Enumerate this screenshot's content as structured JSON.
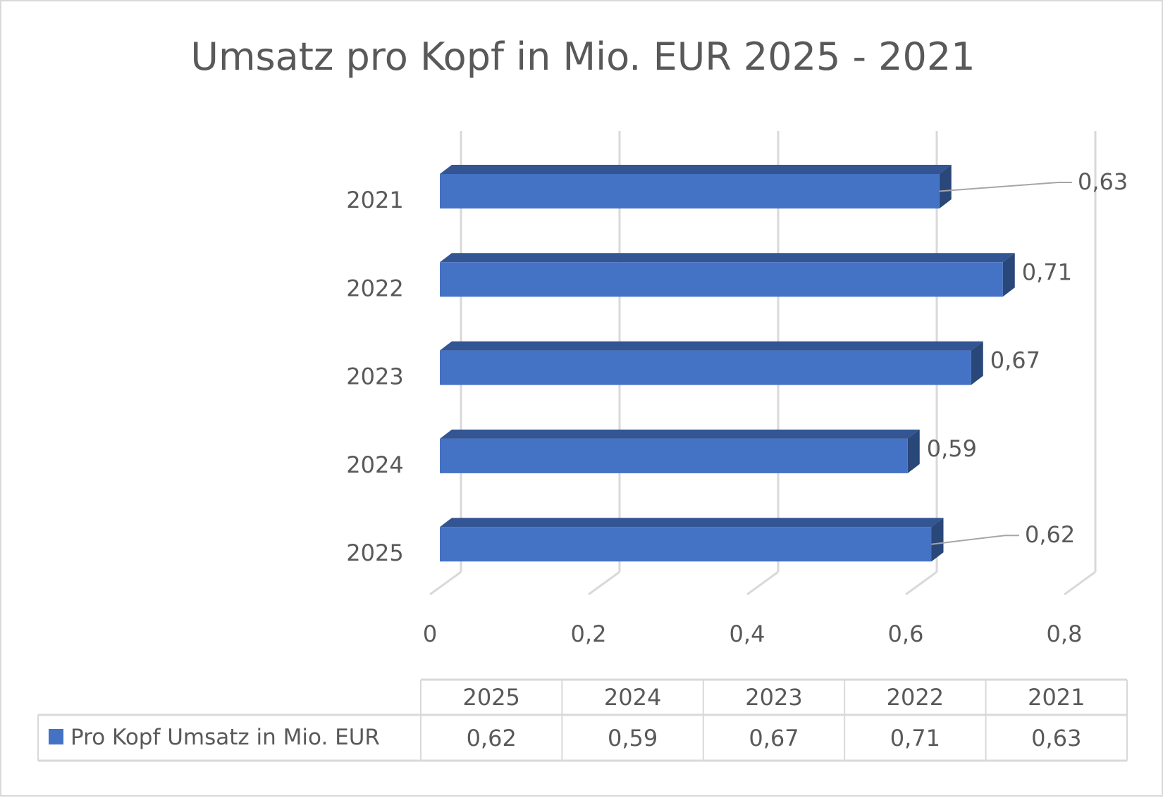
{
  "chart_data": {
    "type": "bar",
    "orientation": "horizontal",
    "style": "3d",
    "title": "Umsatz pro Kopf in Mio. EUR 2025 - 2021",
    "categories": [
      "2021",
      "2022",
      "2023",
      "2024",
      "2025"
    ],
    "series": [
      {
        "name": "Pro Kopf Umsatz in Mio. EUR",
        "values": [
          0.63,
          0.71,
          0.67,
          0.59,
          0.62
        ]
      }
    ],
    "data_labels": [
      "0,63",
      "0,71",
      "0,67",
      "0,59",
      "0,62"
    ],
    "xlim": [
      0,
      0.8
    ],
    "x_ticks": [
      "0",
      "0,2",
      "0,4",
      "0,6",
      "0,8"
    ],
    "grid": true,
    "bar_color": "#4472c4",
    "data_table": {
      "headers": [
        "2025",
        "2024",
        "2023",
        "2022",
        "2021"
      ],
      "row_label": "Pro Kopf Umsatz in Mio. EUR",
      "values": [
        "0,62",
        "0,59",
        "0,67",
        "0,71",
        "0,63"
      ]
    }
  }
}
